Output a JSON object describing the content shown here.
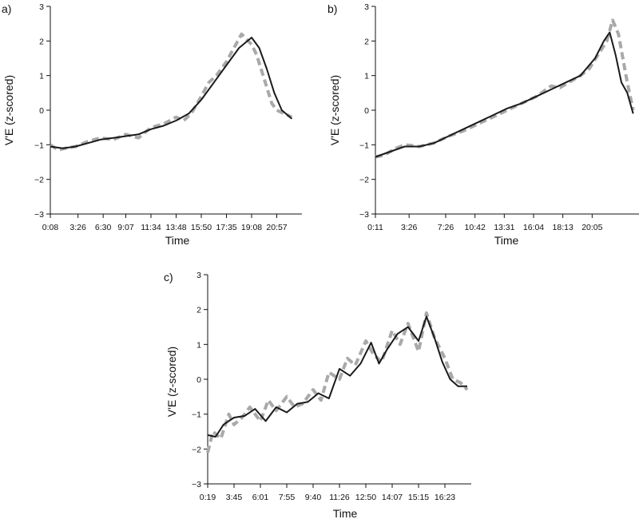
{
  "chart_data": [
    {
      "panel": "a)",
      "type": "line",
      "xlabel": "Time",
      "ylabel": "V'E (z-scored)",
      "ylim": [
        -3,
        3
      ],
      "yticks": [
        -3,
        -2,
        -1,
        0,
        1,
        2,
        3
      ],
      "xticks": [
        "0:08",
        "3:26",
        "6:30",
        "9:07",
        "11:34",
        "13:48",
        "15:50",
        "17:35",
        "19:08",
        "20:57"
      ],
      "xlim": [
        0,
        10.0
      ],
      "grid": false,
      "series": [
        {
          "style": "dashed-grey",
          "x": [
            0,
            0.3,
            0.6,
            1.0,
            1.5,
            2.0,
            2.5,
            3.0,
            3.5,
            4.0,
            4.5,
            5.0,
            5.3,
            5.6,
            6.0,
            6.3,
            6.6,
            7.0,
            7.3,
            7.6,
            8.0,
            8.2,
            8.5,
            8.8,
            9.0,
            9.3,
            9.6
          ],
          "y": [
            -1.0,
            -1.15,
            -1.1,
            -1.05,
            -0.9,
            -0.8,
            -0.85,
            -0.7,
            -0.8,
            -0.5,
            -0.4,
            -0.2,
            -0.3,
            -0.1,
            0.4,
            0.8,
            1.0,
            1.4,
            1.8,
            2.2,
            1.9,
            1.6,
            0.9,
            0.2,
            0.0,
            -0.1,
            -0.2
          ]
        },
        {
          "style": "solid-black",
          "x": [
            0,
            0.5,
            1.0,
            1.5,
            2.0,
            2.5,
            3.0,
            3.5,
            4.0,
            4.5,
            5.0,
            5.5,
            6.0,
            6.5,
            7.0,
            7.5,
            8.0,
            8.3,
            8.6,
            8.9,
            9.2,
            9.6
          ],
          "y": [
            -1.05,
            -1.1,
            -1.05,
            -0.95,
            -0.85,
            -0.8,
            -0.75,
            -0.7,
            -0.55,
            -0.45,
            -0.3,
            -0.1,
            0.3,
            0.8,
            1.3,
            1.8,
            2.1,
            1.8,
            1.2,
            0.5,
            0.0,
            -0.25
          ]
        }
      ]
    },
    {
      "panel": "b)",
      "type": "line",
      "xlabel": "Time",
      "ylabel": "V'E (z-scored)",
      "ylim": [
        -3,
        3
      ],
      "yticks": [
        -3,
        -2,
        -1,
        0,
        1,
        2,
        3
      ],
      "xticks": [
        "0:11",
        "3:26",
        "7:26",
        "10:42",
        "13:31",
        "16:04",
        "18:13",
        "20:05"
      ],
      "xlim": [
        0,
        9.0
      ],
      "grid": false,
      "series": [
        {
          "style": "dashed-grey",
          "x": [
            0,
            0.3,
            0.7,
            1.0,
            1.5,
            2.0,
            2.5,
            3.0,
            3.5,
            4.0,
            4.5,
            5.0,
            5.5,
            6.0,
            6.3,
            6.6,
            7.0,
            7.3,
            7.6,
            7.9,
            8.1,
            8.3,
            8.6,
            8.8
          ],
          "y": [
            -1.35,
            -1.3,
            -1.1,
            -1.0,
            -1.05,
            -0.95,
            -0.75,
            -0.6,
            -0.4,
            -0.2,
            0.0,
            0.2,
            0.4,
            0.7,
            0.65,
            0.8,
            1.0,
            1.2,
            1.6,
            2.0,
            2.6,
            2.2,
            0.8,
            0.0
          ]
        },
        {
          "style": "solid-black",
          "x": [
            0,
            0.5,
            1.0,
            1.5,
            2.0,
            2.5,
            3.0,
            3.5,
            4.0,
            4.5,
            5.0,
            5.5,
            6.0,
            6.5,
            7.0,
            7.5,
            7.8,
            8.0,
            8.2,
            8.4,
            8.6,
            8.8
          ],
          "y": [
            -1.35,
            -1.2,
            -1.05,
            -1.05,
            -0.95,
            -0.75,
            -0.55,
            -0.35,
            -0.15,
            0.05,
            0.2,
            0.4,
            0.6,
            0.8,
            1.0,
            1.5,
            2.0,
            2.25,
            1.6,
            0.8,
            0.5,
            -0.1
          ]
        }
      ]
    },
    {
      "panel": "c)",
      "type": "line",
      "xlabel": "Time",
      "ylabel": "V'E (z-scored)",
      "ylim": [
        -3,
        3
      ],
      "yticks": [
        -3,
        -2,
        -1,
        0,
        1,
        2,
        3
      ],
      "xticks": [
        "0:19",
        "3:45",
        "6:01",
        "7:55",
        "9:40",
        "11:26",
        "12:50",
        "14:07",
        "15:15",
        "16:23"
      ],
      "xlim": [
        0,
        10.0
      ],
      "grid": false,
      "series": [
        {
          "style": "dashed-grey",
          "x": [
            0,
            0.2,
            0.5,
            0.8,
            1.0,
            1.3,
            1.6,
            2.0,
            2.3,
            2.6,
            3.0,
            3.3,
            3.6,
            4.0,
            4.3,
            4.6,
            5.0,
            5.3,
            5.6,
            6.0,
            6.3,
            6.6,
            7.0,
            7.3,
            7.6,
            8.0,
            8.3,
            8.6,
            9.0,
            9.3,
            9.6,
            9.85
          ],
          "y": [
            -2.1,
            -1.5,
            -1.7,
            -1.0,
            -1.3,
            -1.1,
            -0.8,
            -1.2,
            -0.6,
            -0.9,
            -0.5,
            -0.8,
            -0.7,
            -0.3,
            -0.6,
            0.2,
            0.0,
            0.6,
            0.4,
            1.1,
            0.7,
            0.5,
            1.4,
            1.0,
            1.6,
            0.8,
            1.9,
            1.2,
            0.6,
            0.0,
            -0.1,
            -0.3
          ]
        },
        {
          "style": "solid-black",
          "x": [
            0,
            0.3,
            0.6,
            1.0,
            1.4,
            1.8,
            2.2,
            2.6,
            3.0,
            3.4,
            3.8,
            4.2,
            4.6,
            5.0,
            5.4,
            5.8,
            6.2,
            6.5,
            6.8,
            7.2,
            7.6,
            8.0,
            8.3,
            8.6,
            8.9,
            9.2,
            9.5,
            9.85
          ],
          "y": [
            -1.6,
            -1.65,
            -1.3,
            -1.1,
            -1.05,
            -0.85,
            -1.2,
            -0.8,
            -0.95,
            -0.7,
            -0.65,
            -0.4,
            -0.55,
            0.3,
            0.1,
            0.45,
            1.05,
            0.45,
            0.85,
            1.3,
            1.5,
            1.1,
            1.8,
            1.2,
            0.5,
            0.0,
            -0.2,
            -0.2
          ]
        }
      ]
    }
  ]
}
